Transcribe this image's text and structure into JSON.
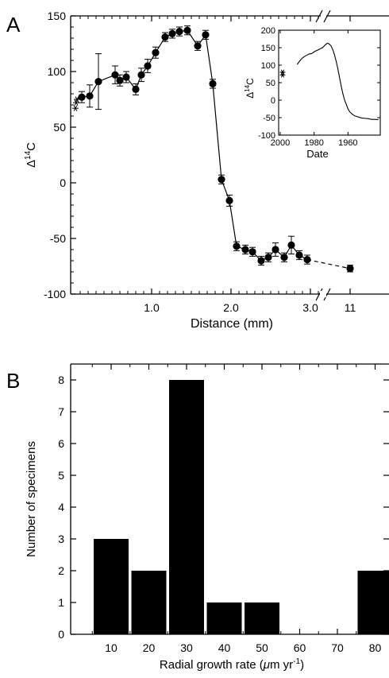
{
  "chart_data": [
    {
      "panel_label": "A",
      "type": "line",
      "xlabel": "Distance (mm)",
      "ylabel": "Δ14C",
      "ylabel_parts": {
        "prefix": "Δ",
        "sup": "14",
        "suffix": "C"
      },
      "ylim": [
        -100,
        150
      ],
      "yticks": [
        150,
        100,
        50,
        0,
        -50,
        -100
      ],
      "xticks": [
        "1.0",
        "2.0",
        "3.0",
        "11"
      ],
      "axis_break": true,
      "grid": false,
      "series": [
        {
          "marker": "filled-circle",
          "line": "solid",
          "points": [
            {
              "x": 0.12,
              "y": 77,
              "err": 5
            },
            {
              "x": 0.22,
              "y": 78,
              "err": 10
            },
            {
              "x": 0.33,
              "y": 91,
              "err": 25
            },
            {
              "x": 0.54,
              "y": 97,
              "err": 8
            },
            {
              "x": 0.6,
              "y": 92,
              "err": 5
            },
            {
              "x": 0.68,
              "y": 95,
              "err": 5
            },
            {
              "x": 0.8,
              "y": 84,
              "err": 5
            },
            {
              "x": 0.87,
              "y": 97,
              "err": 6
            },
            {
              "x": 0.95,
              "y": 105,
              "err": 6
            },
            {
              "x": 1.05,
              "y": 117,
              "err": 5
            },
            {
              "x": 1.17,
              "y": 131,
              "err": 4
            },
            {
              "x": 1.26,
              "y": 134,
              "err": 4
            },
            {
              "x": 1.35,
              "y": 136,
              "err": 4
            },
            {
              "x": 1.45,
              "y": 137,
              "err": 4
            },
            {
              "x": 1.58,
              "y": 123,
              "err": 4
            },
            {
              "x": 1.68,
              "y": 133,
              "err": 4
            },
            {
              "x": 1.77,
              "y": 89,
              "err": 4
            },
            {
              "x": 1.88,
              "y": 3,
              "err": 4
            },
            {
              "x": 1.98,
              "y": -16,
              "err": 5
            },
            {
              "x": 2.07,
              "y": -57,
              "err": 4
            },
            {
              "x": 2.18,
              "y": -60,
              "err": 4
            },
            {
              "x": 2.27,
              "y": -62,
              "err": 4
            },
            {
              "x": 2.38,
              "y": -70,
              "err": 4
            },
            {
              "x": 2.47,
              "y": -67,
              "err": 4
            },
            {
              "x": 2.56,
              "y": -60,
              "err": 6
            },
            {
              "x": 2.67,
              "y": -67,
              "err": 4
            },
            {
              "x": 2.76,
              "y": -56,
              "err": 8
            },
            {
              "x": 2.86,
              "y": -65,
              "err": 4
            },
            {
              "x": 2.96,
              "y": -69,
              "err": 4
            }
          ]
        },
        {
          "marker": "filled-circle",
          "line": "dashed",
          "points": [
            {
              "x": 2.96,
              "y": -69
            },
            {
              "x": 11,
              "y": -77,
              "err": 3
            }
          ]
        },
        {
          "marker": "asterisk",
          "points": [
            {
              "x": 0.04,
              "y": 67
            },
            {
              "x": 0.06,
              "y": 72
            },
            {
              "x": 0.08,
              "y": 75
            }
          ]
        }
      ],
      "inset": {
        "type": "line",
        "xlabel": "Date",
        "ylabel": "Δ14C",
        "ylabel_parts": {
          "prefix": "Δ",
          "sup": "14",
          "suffix": "C"
        },
        "xlim": [
          2000,
          1940
        ],
        "ylim": [
          -100,
          200
        ],
        "xticks": [
          "2000",
          "1980",
          "1960"
        ],
        "yticks": [
          "200",
          "150",
          "100",
          "50",
          "0",
          "-50",
          "-100"
        ],
        "asterisk_points": [
          {
            "x": 2000,
            "y": 80
          },
          {
            "x": 2000,
            "y": 72
          }
        ],
        "record": [
          [
            1990.0,
            102
          ],
          [
            1988.5,
            112
          ],
          [
            1987.5,
            118
          ],
          [
            1986.0,
            124
          ],
          [
            1984.5,
            128
          ],
          [
            1983.0,
            132
          ],
          [
            1981.5,
            133
          ],
          [
            1980.0,
            138
          ],
          [
            1978.5,
            142
          ],
          [
            1977.0,
            145
          ],
          [
            1976.0,
            148
          ],
          [
            1975.0,
            150
          ],
          [
            1974.0,
            155
          ],
          [
            1973.0,
            160
          ],
          [
            1972.0,
            163
          ],
          [
            1971.0,
            160
          ],
          [
            1970.0,
            155
          ],
          [
            1969.0,
            145
          ],
          [
            1968.0,
            130
          ],
          [
            1967.0,
            112
          ],
          [
            1966.0,
            90
          ],
          [
            1965.0,
            65
          ],
          [
            1964.0,
            40
          ],
          [
            1963.0,
            18
          ],
          [
            1962.0,
            0
          ],
          [
            1961.0,
            -12
          ],
          [
            1960.0,
            -25
          ],
          [
            1959.0,
            -33
          ],
          [
            1958.0,
            -38
          ],
          [
            1957.0,
            -42
          ],
          [
            1956.0,
            -45
          ],
          [
            1954.0,
            -48
          ],
          [
            1952.0,
            -51
          ],
          [
            1950.0,
            -52
          ],
          [
            1948.0,
            -53
          ],
          [
            1946.0,
            -55
          ],
          [
            1944.0,
            -55
          ],
          [
            1942.0,
            -56
          ]
        ]
      }
    },
    {
      "panel_label": "B",
      "type": "bar",
      "xlabel": "Radial growth rate (μm yr⁻¹)",
      "xlabel_parts": {
        "prefix": "Radial growth rate (",
        "unit": "μ",
        "mid": "m yr",
        "sup": "-1",
        "suffix": ")"
      },
      "ylabel": "Number of specimens",
      "ylim": [
        0,
        8
      ],
      "yticks": [
        "0",
        "1",
        "2",
        "3",
        "4",
        "5",
        "6",
        "7",
        "8"
      ],
      "categories": [
        "10",
        "20",
        "30",
        "40",
        "50",
        "60",
        "70",
        "80"
      ],
      "values": [
        3,
        2,
        8,
        1,
        1,
        0,
        0,
        2
      ],
      "bar_color": "#000000",
      "grid": false
    }
  ]
}
